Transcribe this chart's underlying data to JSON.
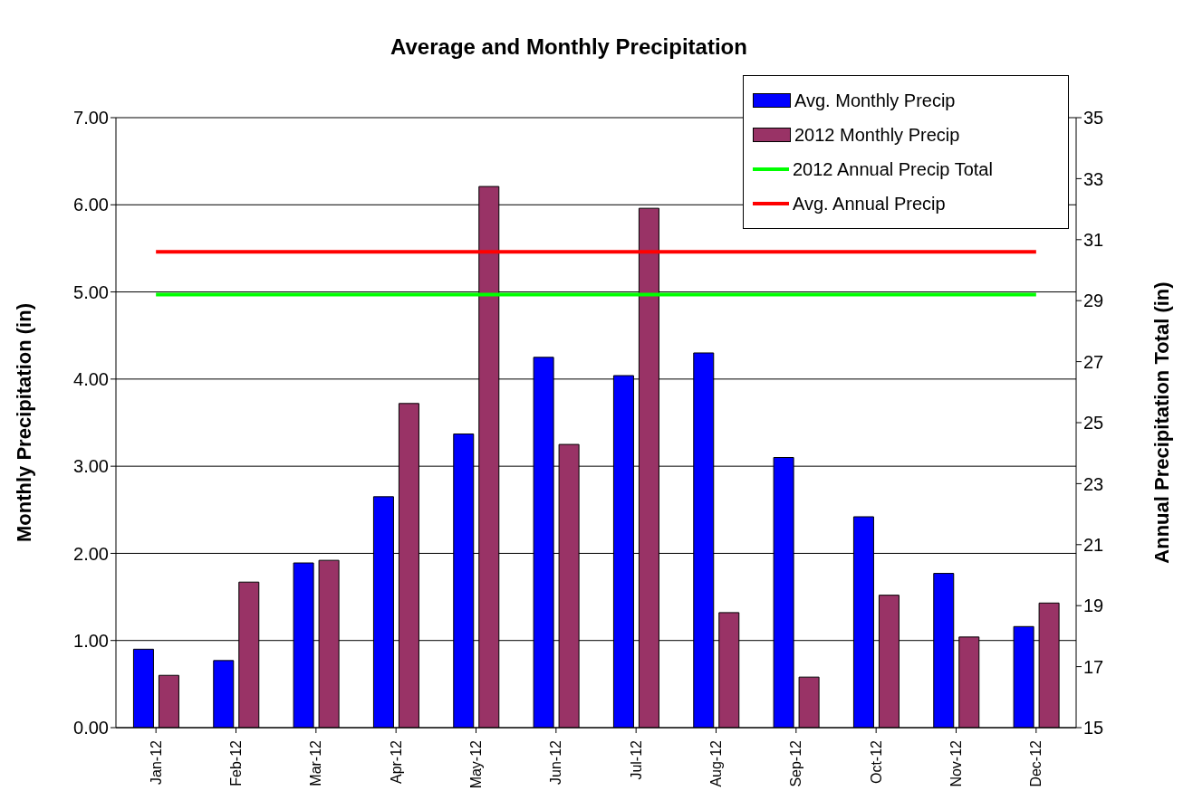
{
  "chart_data": {
    "type": "bar",
    "title": "Average and Monthly Precipitation",
    "categories": [
      "Jan-12",
      "Feb-12",
      "Mar-12",
      "Apr-12",
      "May-12",
      "Jun-12",
      "Jul-12",
      "Aug-12",
      "Sep-12",
      "Oct-12",
      "Nov-12",
      "Dec-12"
    ],
    "series": [
      {
        "name": "Avg. Monthly Precip",
        "color": "#0000ff",
        "values": [
          0.9,
          0.77,
          1.89,
          2.65,
          3.37,
          4.25,
          4.04,
          4.3,
          3.1,
          2.42,
          1.77,
          1.16
        ]
      },
      {
        "name": "2012 Monthly Precip",
        "color": "#993366",
        "values": [
          0.6,
          1.67,
          1.92,
          3.72,
          6.21,
          3.25,
          5.96,
          1.32,
          0.58,
          1.52,
          1.04,
          1.43
        ]
      },
      {
        "name": "2012 Annual Precip Total",
        "type": "line",
        "axis": "y2",
        "color": "#00ff00",
        "values": [
          29.2,
          29.2,
          29.2,
          29.2,
          29.2,
          29.2,
          29.2,
          29.2,
          29.2,
          29.2,
          29.2,
          29.2
        ]
      },
      {
        "name": "Avg. Annual Precip",
        "type": "line",
        "axis": "y2",
        "color": "#ff0000",
        "values": [
          30.6,
          30.6,
          30.6,
          30.6,
          30.6,
          30.6,
          30.6,
          30.6,
          30.6,
          30.6,
          30.6,
          30.6
        ]
      }
    ],
    "ylabel": "Monthly Precipitation (in)",
    "y2label": "Annual Precipitation Total (in)",
    "ylim": [
      0,
      7
    ],
    "yticks": [
      {
        "value": 0,
        "label": "0.00"
      },
      {
        "value": 1,
        "label": "1.00"
      },
      {
        "value": 2,
        "label": "2.00"
      },
      {
        "value": 3,
        "label": "3.00"
      },
      {
        "value": 4,
        "label": "4.00"
      },
      {
        "value": 5,
        "label": "5.00"
      },
      {
        "value": 6,
        "label": "6.00"
      },
      {
        "value": 7,
        "label": "7.00"
      }
    ],
    "y2lim": [
      15,
      35
    ],
    "y2ticks": [
      15,
      17,
      19,
      21,
      23,
      25,
      27,
      29,
      31,
      33,
      35
    ],
    "grid": "y",
    "legend": "top right",
    "marker": "none",
    "line_style": "solid"
  }
}
